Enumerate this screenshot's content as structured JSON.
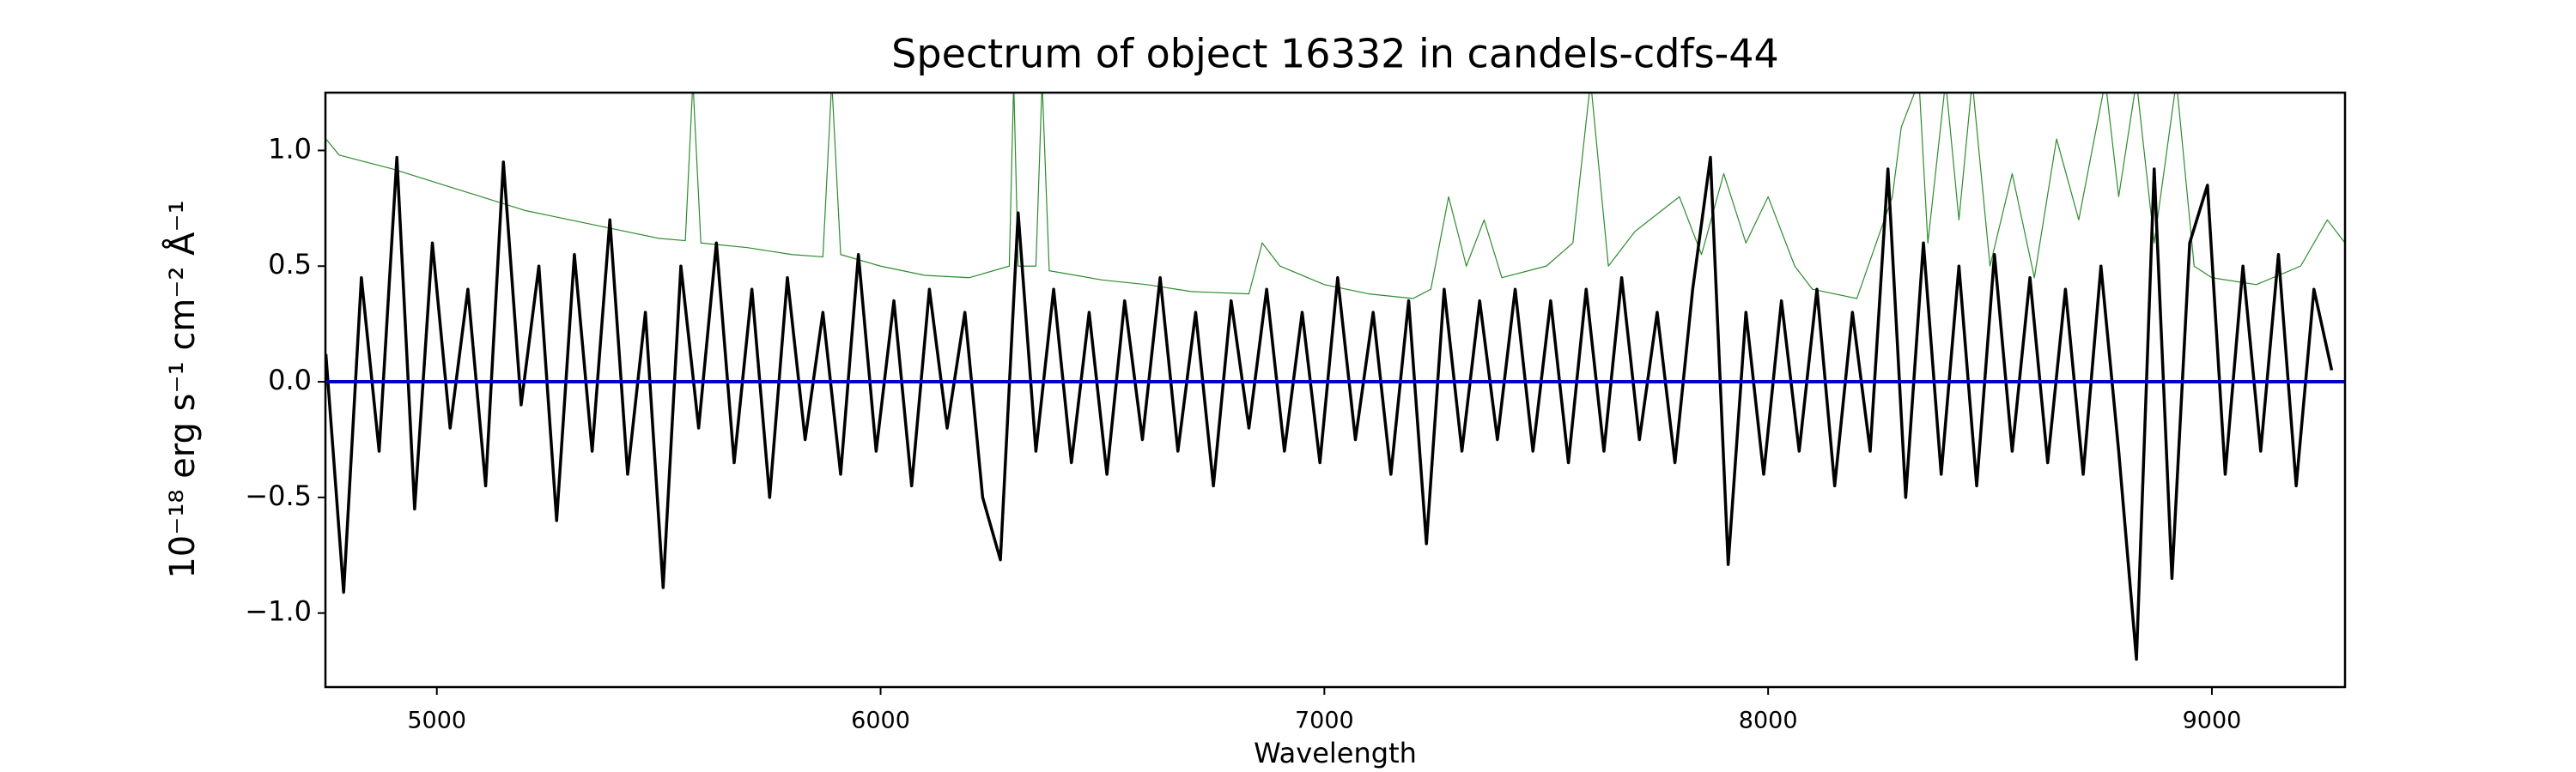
{
  "chart_data": {
    "type": "line",
    "title": "Spectrum of object 16332 in candels-cdfs-44",
    "x_label": "Wavelength",
    "y_label": "10⁻¹⁸ erg s⁻¹ cm⁻² Å⁻¹",
    "xlim": [
      4749,
      9300
    ],
    "ylim": [
      -1.32,
      1.25
    ],
    "xticks": [
      5000,
      6000,
      7000,
      8000,
      9000
    ],
    "yticks": [
      {
        "value": -1.0,
        "label": "−1.0"
      },
      {
        "value": -0.5,
        "label": "−0.5"
      },
      {
        "value": 0.0,
        "label": "0.0"
      },
      {
        "value": 0.5,
        "label": "0.5"
      },
      {
        "value": 1.0,
        "label": "1.0"
      }
    ],
    "grid": false,
    "series": [
      {
        "color": "#2e8b2e",
        "width": 1.2,
        "x": [
          4750,
          4780,
          4900,
          5000,
          5100,
          5200,
          5300,
          5400,
          5500,
          5560,
          5577,
          5595,
          5700,
          5800,
          5870,
          5890,
          5910,
          6000,
          6100,
          6200,
          6290,
          6300,
          6310,
          6350,
          6364,
          6380,
          6500,
          6600,
          6700,
          6830,
          6860,
          6900,
          7000,
          7100,
          7200,
          7240,
          7280,
          7320,
          7360,
          7400,
          7500,
          7560,
          7600,
          7640,
          7700,
          7800,
          7850,
          7900,
          7950,
          8000,
          8060,
          8100,
          8200,
          8280,
          8300,
          8340,
          8360,
          8400,
          8430,
          8460,
          8500,
          8550,
          8600,
          8650,
          8700,
          8760,
          8790,
          8830,
          8870,
          8920,
          8960,
          9000,
          9100,
          9200,
          9260,
          9300
        ],
        "values": [
          1.05,
          0.98,
          0.92,
          0.86,
          0.8,
          0.74,
          0.7,
          0.66,
          0.62,
          0.61,
          1.3,
          0.6,
          0.58,
          0.55,
          0.54,
          1.3,
          0.55,
          0.5,
          0.46,
          0.45,
          0.5,
          1.3,
          0.5,
          0.5,
          1.3,
          0.48,
          0.44,
          0.42,
          0.39,
          0.38,
          0.6,
          0.5,
          0.42,
          0.38,
          0.36,
          0.4,
          0.8,
          0.5,
          0.7,
          0.45,
          0.5,
          0.6,
          1.3,
          0.5,
          0.65,
          0.8,
          0.55,
          0.9,
          0.6,
          0.8,
          0.5,
          0.4,
          0.36,
          0.8,
          1.1,
          1.3,
          0.6,
          1.3,
          0.7,
          1.3,
          0.5,
          0.9,
          0.45,
          1.05,
          0.7,
          1.3,
          0.8,
          1.3,
          0.6,
          1.3,
          0.5,
          0.45,
          0.42,
          0.5,
          0.7,
          0.6
        ]
      },
      {
        "color": "#000000",
        "width": 3.5,
        "x": [
          4750,
          4790,
          4830,
          4870,
          4910,
          4950,
          4990,
          5030,
          5070,
          5110,
          5150,
          5190,
          5230,
          5270,
          5310,
          5350,
          5390,
          5430,
          5470,
          5510,
          5550,
          5590,
          5630,
          5670,
          5710,
          5750,
          5790,
          5830,
          5870,
          5910,
          5950,
          5990,
          6030,
          6070,
          6110,
          6150,
          6190,
          6230,
          6270,
          6310,
          6350,
          6390,
          6430,
          6470,
          6510,
          6550,
          6590,
          6630,
          6670,
          6710,
          6750,
          6790,
          6830,
          6870,
          6910,
          6950,
          6990,
          7030,
          7070,
          7110,
          7150,
          7190,
          7230,
          7270,
          7310,
          7350,
          7390,
          7430,
          7470,
          7510,
          7550,
          7590,
          7630,
          7670,
          7710,
          7750,
          7790,
          7830,
          7870,
          7910,
          7950,
          7990,
          8030,
          8070,
          8110,
          8150,
          8190,
          8230,
          8270,
          8310,
          8350,
          8390,
          8430,
          8470,
          8510,
          8550,
          8590,
          8630,
          8670,
          8710,
          8750,
          8790,
          8830,
          8870,
          8910,
          8950,
          8990,
          9030,
          9070,
          9110,
          9150,
          9190,
          9230,
          9270
        ],
        "values": [
          0.12,
          -0.91,
          0.45,
          -0.3,
          0.97,
          -0.55,
          0.6,
          -0.2,
          0.4,
          -0.45,
          0.95,
          -0.1,
          0.5,
          -0.6,
          0.55,
          -0.3,
          0.7,
          -0.4,
          0.3,
          -0.89,
          0.5,
          -0.2,
          0.6,
          -0.35,
          0.4,
          -0.5,
          0.45,
          -0.25,
          0.3,
          -0.4,
          0.55,
          -0.3,
          0.35,
          -0.45,
          0.4,
          -0.2,
          0.3,
          -0.5,
          -0.77,
          0.73,
          -0.3,
          0.4,
          -0.35,
          0.3,
          -0.4,
          0.35,
          -0.25,
          0.45,
          -0.3,
          0.3,
          -0.45,
          0.35,
          -0.2,
          0.4,
          -0.3,
          0.3,
          -0.35,
          0.45,
          -0.25,
          0.3,
          -0.4,
          0.35,
          -0.7,
          0.4,
          -0.3,
          0.35,
          -0.25,
          0.4,
          -0.3,
          0.35,
          -0.35,
          0.4,
          -0.3,
          0.45,
          -0.25,
          0.3,
          -0.35,
          0.4,
          0.97,
          -0.79,
          0.3,
          -0.4,
          0.35,
          -0.3,
          0.4,
          -0.45,
          0.3,
          -0.3,
          0.92,
          -0.5,
          0.6,
          -0.4,
          0.5,
          -0.45,
          0.55,
          -0.3,
          0.45,
          -0.35,
          0.4,
          -0.4,
          0.5,
          -0.3,
          -1.2,
          0.92,
          -0.85,
          0.6,
          0.85,
          -0.4,
          0.5,
          -0.3,
          0.55,
          -0.45,
          0.4,
          0.05
        ]
      },
      {
        "color": "#0000cc",
        "width": 4,
        "x": [
          4750,
          9300
        ],
        "values": [
          0,
          0
        ]
      }
    ]
  }
}
